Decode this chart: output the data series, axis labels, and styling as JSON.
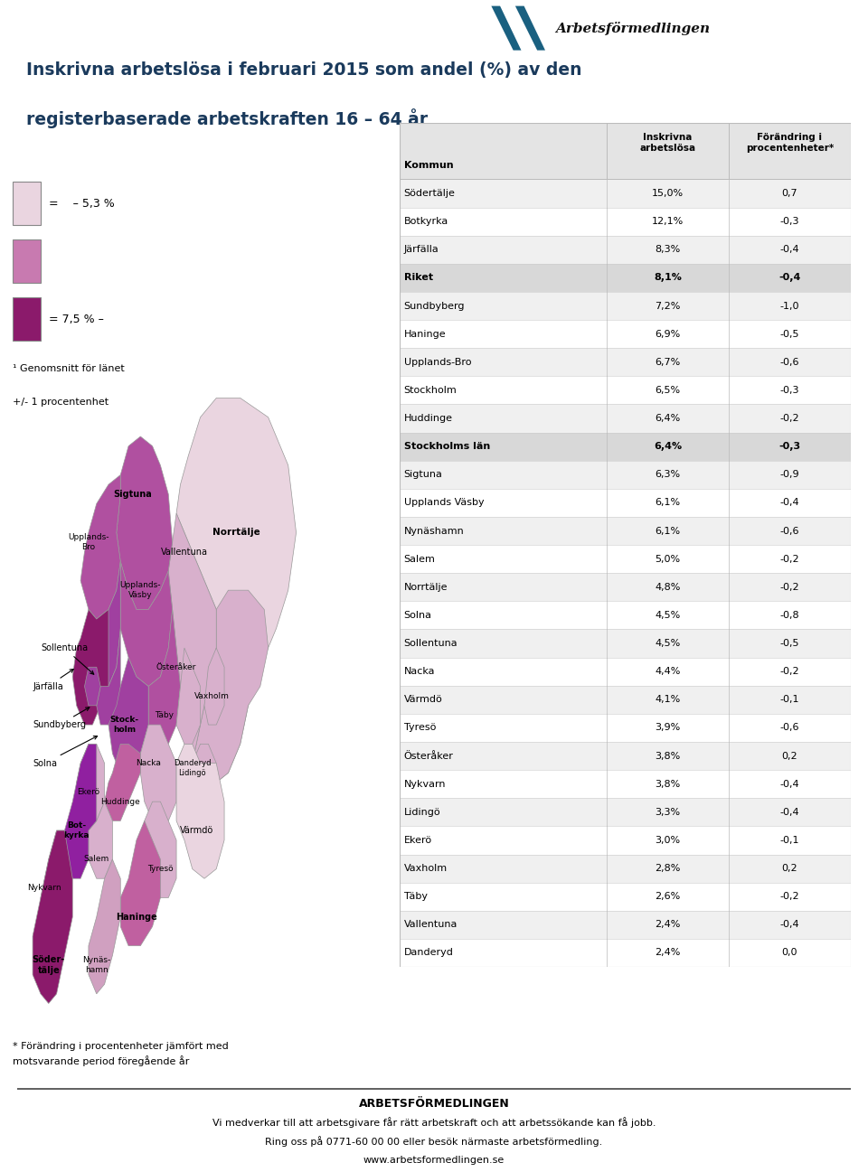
{
  "title_line1": "Inskrivna arbetslösa i februari 2015 som andel (%) av den",
  "title_line2": "registerbaserade arbetskraften 16 – 64 år",
  "legend_color1": "#ead5e0",
  "legend_text1": "=    – 5,3 %",
  "legend_color2": "#c87ab0",
  "legend_text2_empty": "",
  "legend_color3": "#8b1a6b",
  "legend_text3": "= 7,5 % –",
  "legend_note": "¹ Genomsnitt för länet\n+/- 1 procentenhet",
  "footnote": "* Förändring i procentenheter jämfört med\nmotsvarande period föregående år",
  "table_data": [
    [
      "Södertälje",
      "15,0%",
      "0,7"
    ],
    [
      "Botkyrka",
      "12,1%",
      "-0,3"
    ],
    [
      "Järfälla",
      "8,3%",
      "-0,4"
    ],
    [
      "Riket",
      "8,1%",
      "-0,4"
    ],
    [
      "Sundbyberg",
      "7,2%",
      "-1,0"
    ],
    [
      "Haninge",
      "6,9%",
      "-0,5"
    ],
    [
      "Upplands-Bro",
      "6,7%",
      "-0,6"
    ],
    [
      "Stockholm",
      "6,5%",
      "-0,3"
    ],
    [
      "Huddinge",
      "6,4%",
      "-0,2"
    ],
    [
      "Stockholms län",
      "6,4%",
      "-0,3"
    ],
    [
      "Sigtuna",
      "6,3%",
      "-0,9"
    ],
    [
      "Upplands Väsby",
      "6,1%",
      "-0,4"
    ],
    [
      "Nynäshamn",
      "6,1%",
      "-0,6"
    ],
    [
      "Salem",
      "5,0%",
      "-0,2"
    ],
    [
      "Norrtälje",
      "4,8%",
      "-0,2"
    ],
    [
      "Solna",
      "4,5%",
      "-0,8"
    ],
    [
      "Sollentuna",
      "4,5%",
      "-0,5"
    ],
    [
      "Nacka",
      "4,4%",
      "-0,2"
    ],
    [
      "Värmdö",
      "4,1%",
      "-0,1"
    ],
    [
      "Tyresö",
      "3,9%",
      "-0,6"
    ],
    [
      "Österåker",
      "3,8%",
      "0,2"
    ],
    [
      "Nykvarn",
      "3,8%",
      "-0,4"
    ],
    [
      "Lidingö",
      "3,3%",
      "-0,4"
    ],
    [
      "Ekerö",
      "3,0%",
      "-0,1"
    ],
    [
      "Vaxholm",
      "2,8%",
      "0,2"
    ],
    [
      "Täby",
      "2,6%",
      "-0,2"
    ],
    [
      "Vallentuna",
      "2,4%",
      "-0,4"
    ],
    [
      "Danderyd",
      "2,4%",
      "0,0"
    ]
  ],
  "highlighted_rows": [
    3,
    9
  ],
  "footer_line1": "ARBETSFÖRMEDLINGEN",
  "footer_line2": "Vi medverkar till att arbetsgivare får rätt arbetskraft och att arbetssökande kan få jobb.",
  "footer_line3": "Ring oss på 0771-60 00 00 eller besök närmaste arbetsförmedling.",
  "footer_line4": "www.arbetsformedlingen.se",
  "bg_color": "#ffffff",
  "title_color": "#1a3a5c",
  "row_alt_color": "#f0f0f0",
  "row_white": "#ffffff",
  "row_highlight": "#d8d8d8",
  "header_bg": "#e4e4e4",
  "table_border": "#bbbbbb"
}
